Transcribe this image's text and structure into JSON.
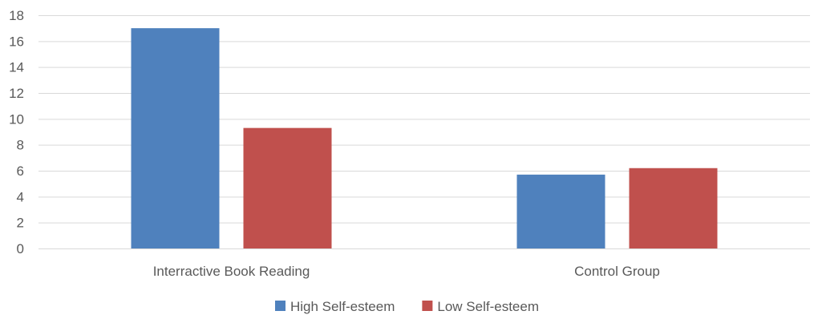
{
  "chart_data": {
    "type": "bar",
    "categories": [
      "Interractive Book Reading",
      "Control Group"
    ],
    "series": [
      {
        "name": "High Self-esteem",
        "values": [
          17.0,
          5.7
        ],
        "color": "#4f81bd"
      },
      {
        "name": "Low Self-esteem",
        "values": [
          9.3,
          6.2
        ],
        "color": "#c0504d"
      }
    ],
    "y_ticks": [
      "0",
      "2",
      "4",
      "6",
      "8",
      "10",
      "12",
      "14",
      "16",
      "18"
    ],
    "ylim": [
      0,
      18
    ],
    "grid": true,
    "legend_position": "bottom",
    "title": "",
    "xlabel": "",
    "ylabel": ""
  }
}
